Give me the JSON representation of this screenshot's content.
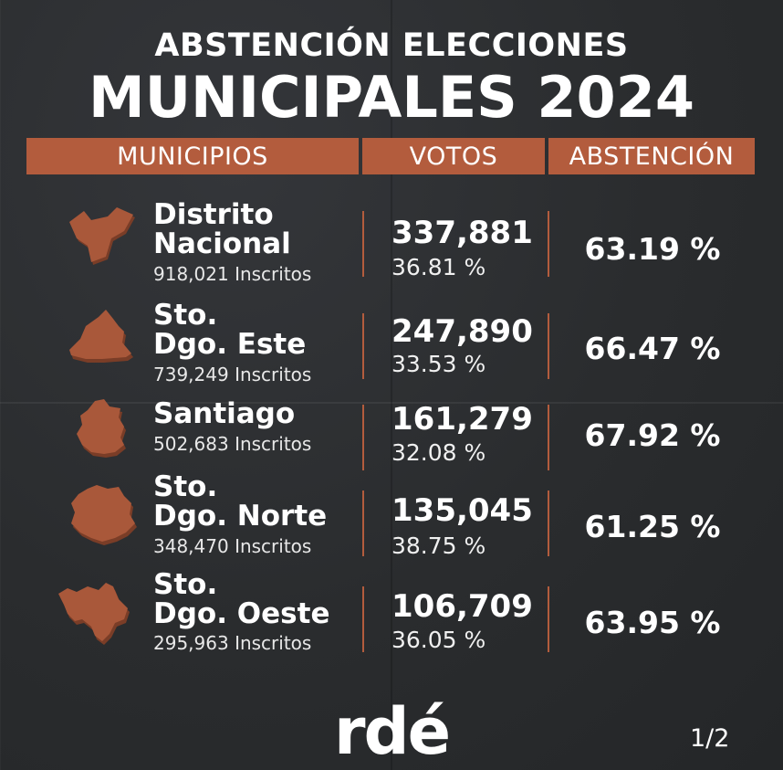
{
  "title": {
    "line1": "ABSTENCIÓN ELECCIONES",
    "line2": "MUNICIPALES 2024"
  },
  "headers": {
    "municipios": "MUNICIPIOS",
    "votos": "VOTOS",
    "abstencion": "ABSTENCIÓN"
  },
  "rows": [
    {
      "name": "Distrito\nNacional",
      "inscritos": "918,021 Inscritos",
      "votos": "337,881",
      "votos_pct": "36.81 %",
      "abstencion": "63.19 %",
      "map_icon": "distrito-nacional-map-icon"
    },
    {
      "name": "Sto.\nDgo. Este",
      "inscritos": "739,249 Inscritos",
      "votos": "247,890",
      "votos_pct": "33.53 %",
      "abstencion": "66.47 %",
      "map_icon": "santo-domingo-este-map-icon"
    },
    {
      "name": "Santiago",
      "inscritos": "502,683 Inscritos",
      "votos": "161,279",
      "votos_pct": "32.08 %",
      "abstencion": "67.92 %",
      "map_icon": "santiago-map-icon"
    },
    {
      "name": "Sto.\nDgo. Norte",
      "inscritos": "348,470 Inscritos",
      "votos": "135,045",
      "votos_pct": "38.75 %",
      "abstencion": "61.25 %",
      "map_icon": "santo-domingo-norte-map-icon"
    },
    {
      "name": "Sto.\nDgo. Oeste",
      "inscritos": "295,963 Inscritos",
      "votos": "106,709",
      "votos_pct": "36.05 %",
      "abstencion": "63.95 %",
      "map_icon": "santo-domingo-oeste-map-icon"
    }
  ],
  "logo": "rdé",
  "page_indicator": "1/2",
  "colors": {
    "accent": "#b35c3d",
    "background": "#2b2d2f",
    "map_fill": "#a9583a"
  }
}
